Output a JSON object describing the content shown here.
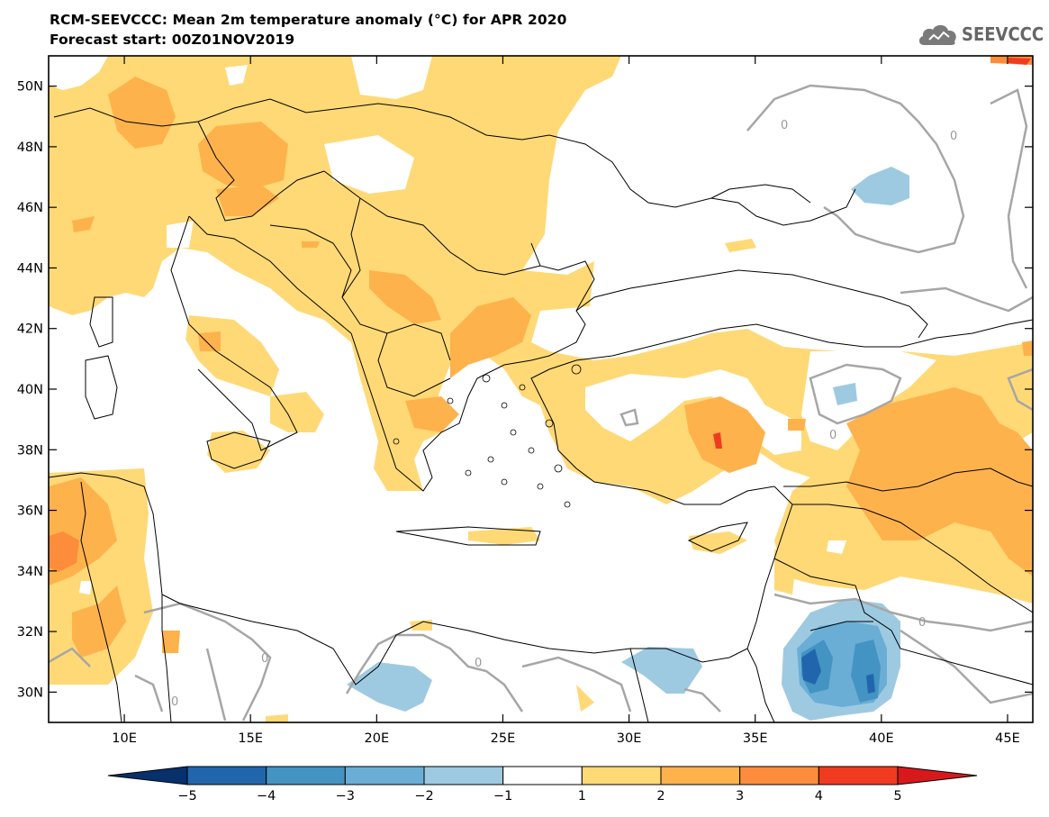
{
  "header": {
    "title_line1": "RCM-SEEVCCC: Mean 2m temperature anomaly (°C) for APR 2020",
    "title_line2": "Forecast start: 00Z01NOV2019"
  },
  "logo": {
    "text": "SEEVCCC",
    "icon": "cloud-icon"
  },
  "map": {
    "type": "filled-contour-map",
    "projection": "lat-lon",
    "lon_range": [
      7,
      46
    ],
    "lat_range": [
      29,
      51
    ],
    "lat_ticks": [
      {
        "value": 50,
        "label": "50N"
      },
      {
        "value": 48,
        "label": "48N"
      },
      {
        "value": 46,
        "label": "46N"
      },
      {
        "value": 44,
        "label": "44N"
      },
      {
        "value": 42,
        "label": "42N"
      },
      {
        "value": 40,
        "label": "40N"
      },
      {
        "value": 38,
        "label": "38N"
      },
      {
        "value": 36,
        "label": "36N"
      },
      {
        "value": 34,
        "label": "34N"
      },
      {
        "value": 32,
        "label": "32N"
      },
      {
        "value": 30,
        "label": "30N"
      }
    ],
    "lon_ticks": [
      {
        "value": 10,
        "label": "10E"
      },
      {
        "value": 15,
        "label": "15E"
      },
      {
        "value": 20,
        "label": "20E"
      },
      {
        "value": 25,
        "label": "25E"
      },
      {
        "value": 30,
        "label": "30E"
      },
      {
        "value": 35,
        "label": "35E"
      },
      {
        "value": 40,
        "label": "40E"
      },
      {
        "value": 45,
        "label": "45E"
      }
    ],
    "contour_label": "0"
  },
  "colorbar": {
    "labels": [
      "−5",
      "−4",
      "−3",
      "−2",
      "−1",
      "1",
      "2",
      "3",
      "4",
      "5"
    ],
    "colors": [
      "#08306b",
      "#2166ac",
      "#4393c3",
      "#6aaed6",
      "#9ecae1",
      "#ffffff",
      "#fed976",
      "#feb24c",
      "#fd8d3c",
      "#f03b20",
      "#d7191c"
    ]
  },
  "colors": {
    "anomaly_1_2": "#fed976",
    "anomaly_2_3": "#feb24c",
    "anomaly_3_4": "#fd8d3c",
    "anomaly_4_5": "#f03b20",
    "anomaly_m1_m2": "#9ecae1",
    "anomaly_m2_m3": "#6aaed6",
    "anomaly_m3_m4": "#4393c3",
    "anomaly_m4_m5": "#2166ac",
    "zero_contour": "#a6a6a6",
    "borders": "#000000"
  }
}
